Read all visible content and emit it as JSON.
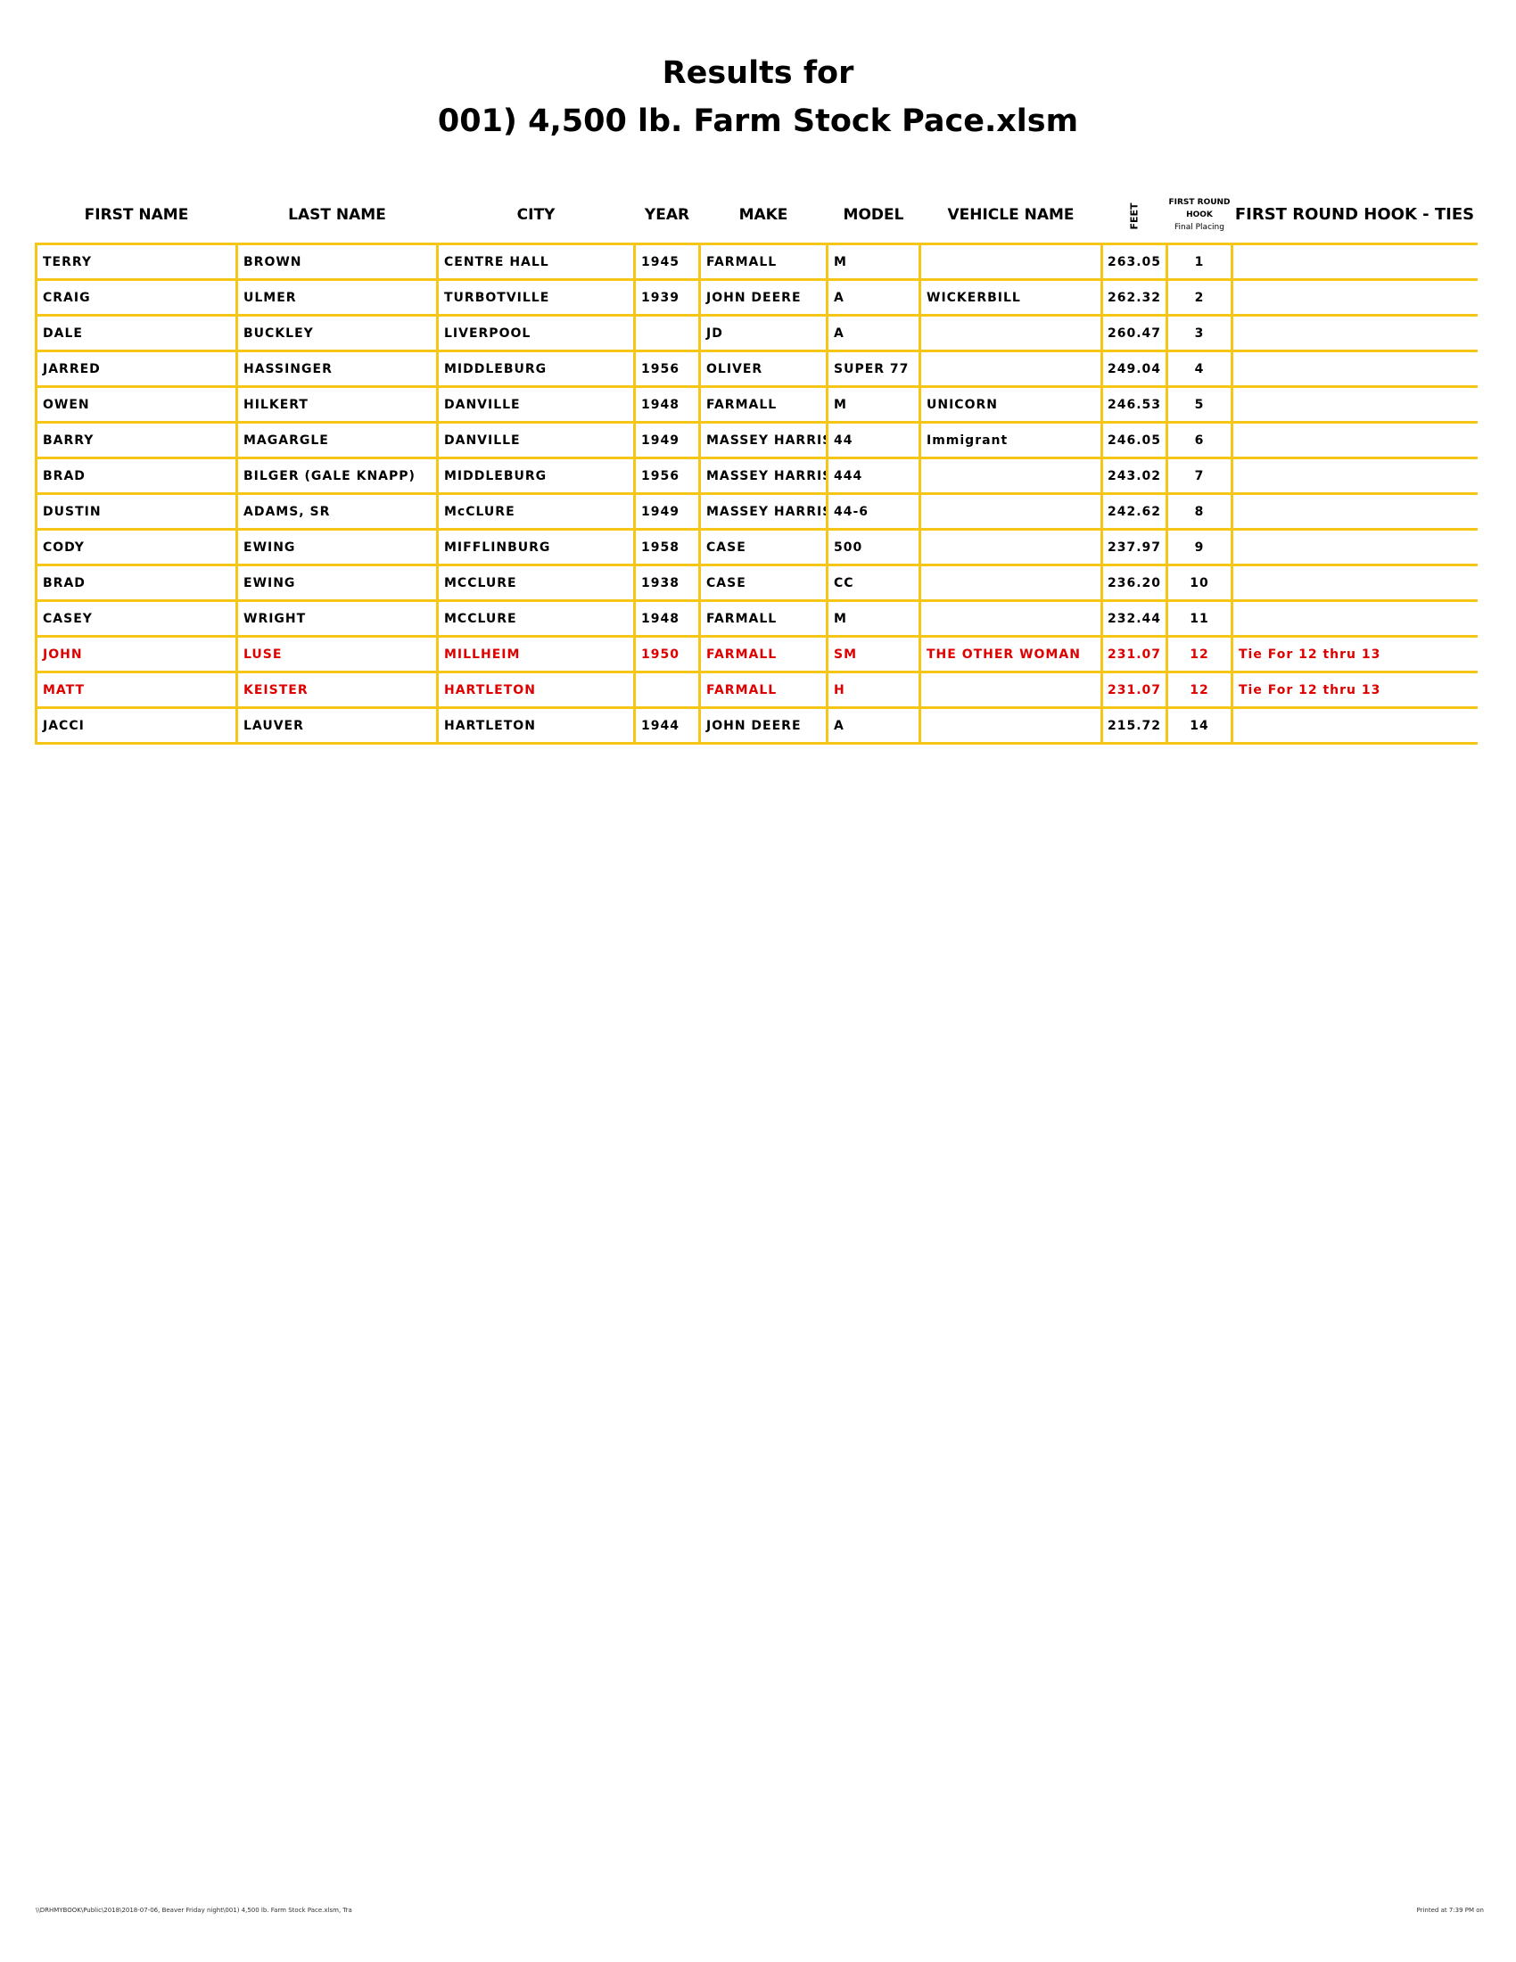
{
  "title_line1": "Results for",
  "title_line2": "001) 4,500 lb. Farm Stock Pace.xlsm",
  "colors": {
    "border": "#f5c518",
    "tie_text": "#e00000"
  },
  "headers": {
    "first_name": "FIRST NAME",
    "last_name": "LAST NAME",
    "city": "CITY",
    "year": "YEAR",
    "make": "MAKE",
    "model": "MODEL",
    "vehicle_name": "VEHICLE NAME",
    "feet": "FEET",
    "placing_line1": "FIRST ROUND",
    "placing_line2": "HOOK",
    "placing_line3": "Final Placing",
    "ties": "FIRST ROUND HOOK - TIES"
  },
  "rows": [
    {
      "first": "TERRY",
      "last": "BROWN",
      "city": "CENTRE HALL",
      "year": "1945",
      "make": "FARMALL",
      "model": "M",
      "vehicle": "",
      "feet": "263.05",
      "place": "1",
      "ties": "",
      "tie": false
    },
    {
      "first": "CRAIG",
      "last": "ULMER",
      "city": "TURBOTVILLE",
      "year": "1939",
      "make": "JOHN DEERE",
      "model": "A",
      "vehicle": "WICKERBILL",
      "feet": "262.32",
      "place": "2",
      "ties": "",
      "tie": false
    },
    {
      "first": "DALE",
      "last": "BUCKLEY",
      "city": "LIVERPOOL",
      "year": "",
      "make": "JD",
      "model": "A",
      "vehicle": "",
      "feet": "260.47",
      "place": "3",
      "ties": "",
      "tie": false
    },
    {
      "first": "JARRED",
      "last": "HASSINGER",
      "city": "MIDDLEBURG",
      "year": "1956",
      "make": "OLIVER",
      "model": "SUPER 77",
      "vehicle": "",
      "feet": "249.04",
      "place": "4",
      "ties": "",
      "tie": false
    },
    {
      "first": "OWEN",
      "last": "HILKERT",
      "city": "DANVILLE",
      "year": "1948",
      "make": "FARMALL",
      "model": "M",
      "vehicle": "UNICORN",
      "feet": "246.53",
      "place": "5",
      "ties": "",
      "tie": false
    },
    {
      "first": "BARRY",
      "last": "MAGARGLE",
      "city": "DANVILLE",
      "year": "1949",
      "make": "MASSEY HARRIS",
      "model": "44",
      "vehicle": "Immigrant",
      "feet": "246.05",
      "place": "6",
      "ties": "",
      "tie": false
    },
    {
      "first": "BRAD",
      "last": "BILGER (GALE KNAPP)",
      "city": "MIDDLEBURG",
      "year": "1956",
      "make": "MASSEY HARRIS",
      "model": "444",
      "vehicle": "",
      "feet": "243.02",
      "place": "7",
      "ties": "",
      "tie": false
    },
    {
      "first": "DUSTIN",
      "last": "ADAMS, SR",
      "city": "McCLURE",
      "year": "1949",
      "make": "MASSEY HARRIS",
      "model": "44-6",
      "vehicle": "",
      "feet": "242.62",
      "place": "8",
      "ties": "",
      "tie": false
    },
    {
      "first": "CODY",
      "last": "EWING",
      "city": "MIFFLINBURG",
      "year": "1958",
      "make": "CASE",
      "model": "500",
      "vehicle": "",
      "feet": "237.97",
      "place": "9",
      "ties": "",
      "tie": false
    },
    {
      "first": "BRAD",
      "last": "EWING",
      "city": "MCCLURE",
      "year": "1938",
      "make": "CASE",
      "model": "CC",
      "vehicle": "",
      "feet": "236.20",
      "place": "10",
      "ties": "",
      "tie": false
    },
    {
      "first": "CASEY",
      "last": "WRIGHT",
      "city": "MCCLURE",
      "year": "1948",
      "make": "FARMALL",
      "model": "M",
      "vehicle": "",
      "feet": "232.44",
      "place": "11",
      "ties": "",
      "tie": false
    },
    {
      "first": "JOHN",
      "last": "LUSE",
      "city": "MILLHEIM",
      "year": "1950",
      "make": "FARMALL",
      "model": "SM",
      "vehicle": "THE OTHER WOMAN",
      "feet": "231.07",
      "place": "12",
      "ties": "Tie For 12 thru 13",
      "tie": true
    },
    {
      "first": "MATT",
      "last": "KEISTER",
      "city": "HARTLETON",
      "year": "",
      "make": "FARMALL",
      "model": "H",
      "vehicle": "",
      "feet": "231.07",
      "place": "12",
      "ties": "Tie For 12 thru 13",
      "tie": true
    },
    {
      "first": "JACCI",
      "last": "LAUVER",
      "city": "HARTLETON",
      "year": "1944",
      "make": "JOHN DEERE",
      "model": "A",
      "vehicle": "",
      "feet": "215.72",
      "place": "14",
      "ties": "",
      "tie": false
    }
  ],
  "footer": {
    "path": "\\\\DRHMYBOOK\\Public\\2018\\2018-07-06, Beaver Friday night\\001) 4,500 lb. Farm Stock Pace.xlsm, Tra",
    "printed": "Printed at 7:39 PM on"
  }
}
